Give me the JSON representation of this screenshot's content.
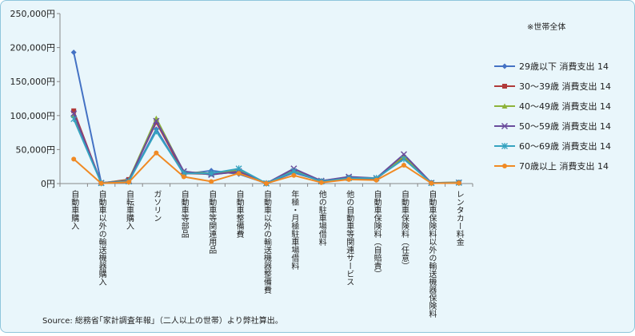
{
  "chart_data": {
    "type": "line",
    "note": "※世帯全体",
    "source": "Source: 総務省｢家計調査年報｣（二人以上の世帯）より弊社算出。",
    "ylim": [
      0,
      250000
    ],
    "yticks": [
      "0円",
      "50,000円",
      "100,000円",
      "150,000円",
      "200,000円",
      "250,000円"
    ],
    "ytick_values": [
      0,
      50000,
      100000,
      150000,
      200000,
      250000
    ],
    "categories": [
      "自動車購入",
      "自動車以外の輸送機器購入",
      "自転車購入",
      "ガソリン",
      "自動車等部品",
      "自動車等関連用品",
      "自動車整備費",
      "自動車以外の輸送機器整備費",
      "年極・月極駐車場借料",
      "他の駐車場借料",
      "他の自動車等関連サービス",
      "自動車保険料（自賠責）",
      "自動車保険料（任意）",
      "自動車保険料以外の輸送機器保険料",
      "レンタカー料金"
    ],
    "series": [
      {
        "name": "29歳以下 消費支出 14",
        "color": "#4472c4",
        "marker": "diamond",
        "values": [
          193000,
          1000,
          3000,
          80000,
          14000,
          19000,
          14000,
          500,
          16000,
          4000,
          9000,
          7000,
          40000,
          1000,
          null
        ]
      },
      {
        "name": "30～39歳 消費支出 14",
        "color": "#b03a3a",
        "marker": "square",
        "values": [
          107000,
          500,
          6000,
          90000,
          15000,
          14000,
          17000,
          300,
          18000,
          3000,
          8000,
          7000,
          38000,
          1000,
          1500
        ]
      },
      {
        "name": "40～49歳 消費支出 14",
        "color": "#8db33a",
        "marker": "triangle",
        "values": [
          100000,
          800,
          5000,
          96000,
          17000,
          15000,
          20000,
          400,
          19000,
          4000,
          9000,
          8000,
          40000,
          1000,
          1800
        ]
      },
      {
        "name": "50～59歳 消費支出 14",
        "color": "#6a4c9c",
        "marker": "x",
        "values": [
          103000,
          1000,
          4000,
          92000,
          18000,
          13000,
          18000,
          300,
          22000,
          4000,
          10000,
          8000,
          43000,
          1000,
          1500
        ]
      },
      {
        "name": "60～69歳 消費支出 14",
        "color": "#35a3c0",
        "marker": "star",
        "values": [
          95000,
          700,
          3000,
          77000,
          15000,
          15000,
          22000,
          300,
          18000,
          3000,
          8000,
          8000,
          36000,
          800,
          1200
        ]
      },
      {
        "name": "70歳以上 消費支出 14",
        "color": "#f08a24",
        "marker": "circle",
        "values": [
          36000,
          400,
          2000,
          45000,
          10000,
          3000,
          15000,
          200,
          12000,
          1500,
          6000,
          5000,
          27000,
          500,
          800
        ]
      }
    ],
    "grid": false,
    "legend": "right"
  }
}
